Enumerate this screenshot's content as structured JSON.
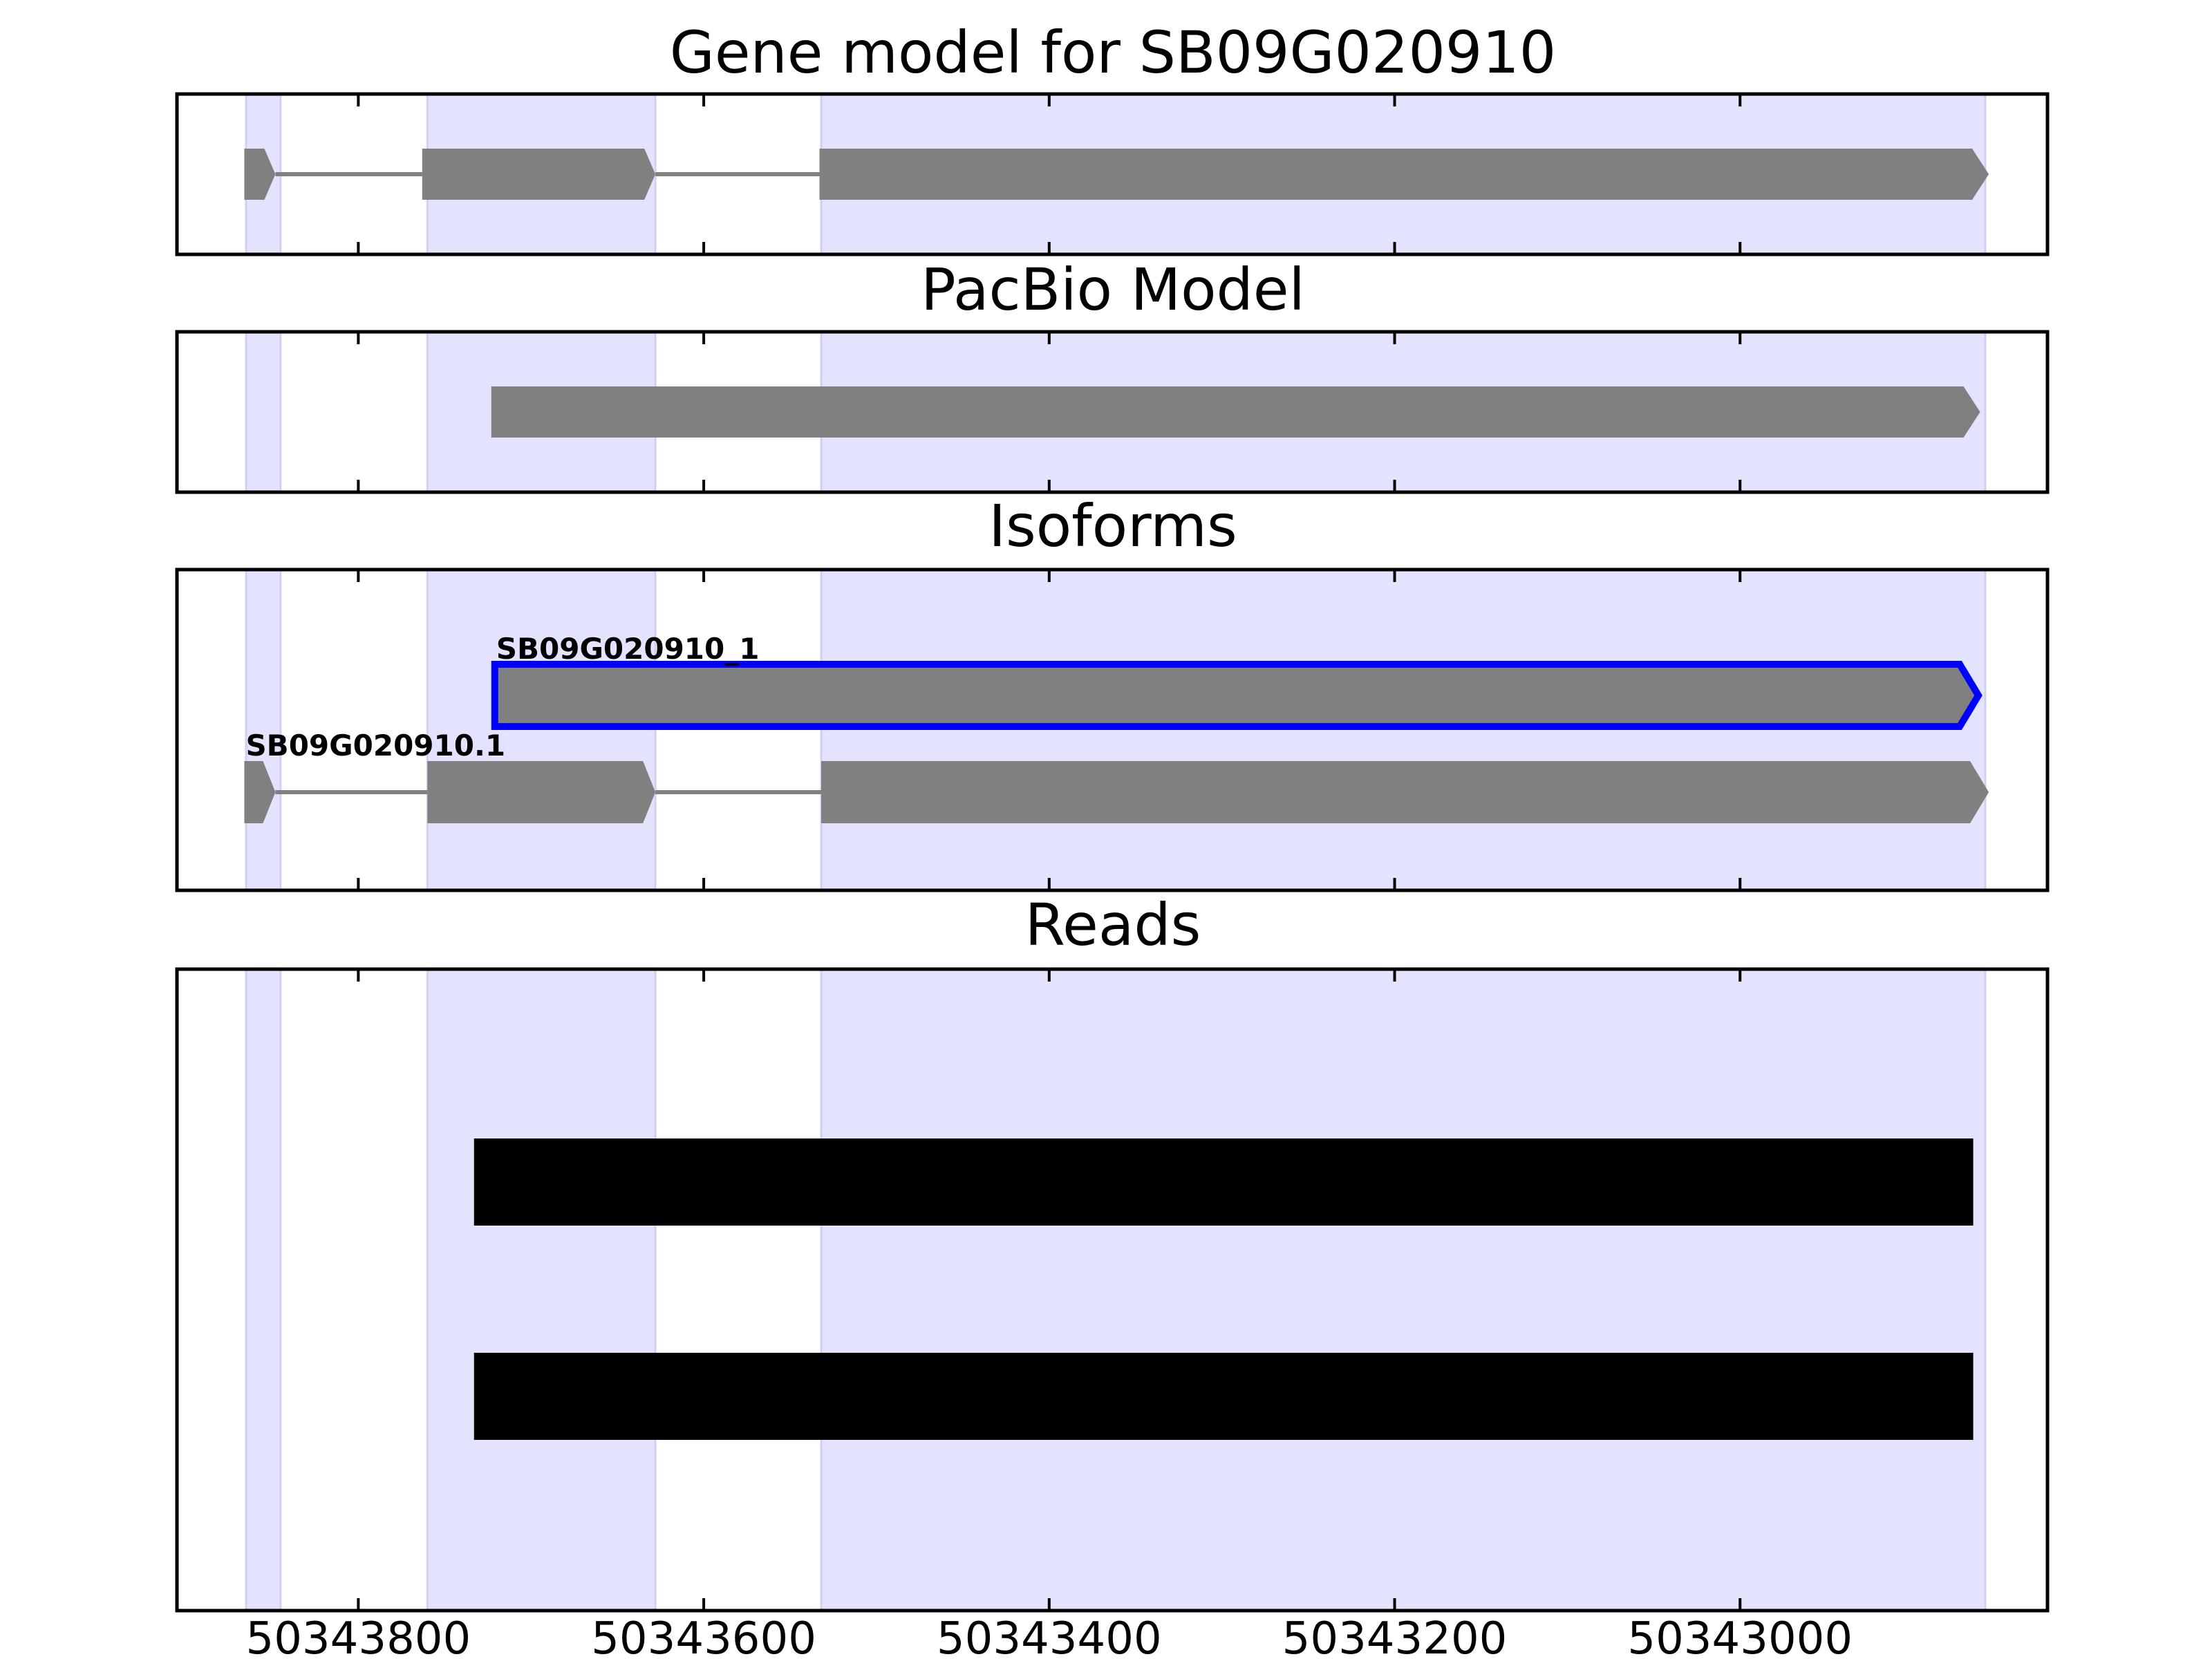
{
  "chart_data": {
    "type": "gene-track",
    "x_axis": {
      "range": [
        50343905,
        50342822
      ],
      "reversed": true,
      "ticks": [
        50343800,
        50343600,
        50343400,
        50343200,
        50343000
      ],
      "tick_labels": [
        "50343800",
        "50343600",
        "50343400",
        "50343200",
        "50343000"
      ]
    },
    "exon_shading": {
      "color": "#e3e3fd",
      "regions": [
        [
          50343865,
          50343845
        ],
        [
          50343760,
          50343628
        ],
        [
          50343532,
          50342858
        ]
      ]
    },
    "panels": [
      {
        "key": "gene_model",
        "title": "Gene model for SB09G020910",
        "tracks": [
          {
            "label": "",
            "exons": [
              [
                50343866,
                50343848
              ],
              [
                50343763,
                50343628
              ],
              [
                50343533,
                50342856
              ]
            ],
            "highlight": false
          }
        ]
      },
      {
        "key": "pacbio",
        "title": "PacBio Model",
        "tracks": [
          {
            "label": "",
            "exons": [
              [
                50343723,
                50342861
              ]
            ],
            "highlight": false
          }
        ]
      },
      {
        "key": "isoforms",
        "title": "Isoforms",
        "tracks": [
          {
            "label": "SB09G020910_1",
            "exons": [
              [
                50343721,
                50342862
              ]
            ],
            "highlight": true
          },
          {
            "label": "SB09G020910.1",
            "exons": [
              [
                50343866,
                50343848
              ],
              [
                50343760,
                50343628
              ],
              [
                50343532,
                50342856
              ]
            ],
            "highlight": false
          }
        ]
      },
      {
        "key": "reads",
        "title": "Reads",
        "reads": [
          [
            50343733,
            50342865
          ],
          [
            50343733,
            50342865
          ]
        ]
      }
    ],
    "colors": {
      "exon": "#808080",
      "intron": "#808080",
      "highlight": "#0000ff",
      "read": "#000000",
      "shade": "#e3e3fd"
    }
  }
}
